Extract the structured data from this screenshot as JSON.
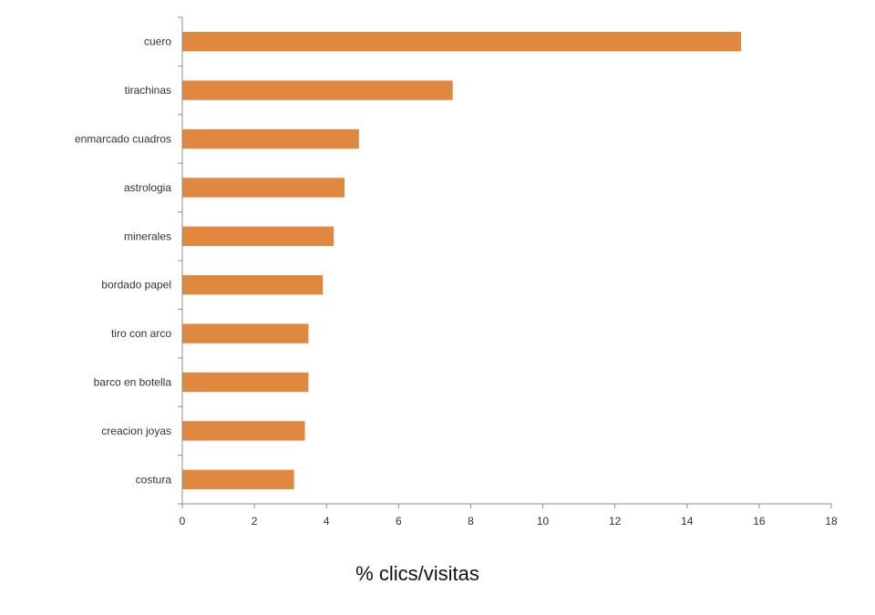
{
  "chart_data": {
    "type": "bar",
    "orientation": "horizontal",
    "categories": [
      "cuero",
      "tirachinas",
      "enmarcado cuadros",
      "astrologia",
      "minerales",
      "bordado papel",
      "tiro con arco",
      "barco en botella",
      "creacion joyas",
      "costura"
    ],
    "values": [
      15.5,
      7.5,
      4.9,
      4.5,
      4.2,
      3.9,
      3.5,
      3.5,
      3.4,
      3.1
    ],
    "xlabel": "% clics/visitas",
    "ylabel": "",
    "xlim": [
      0,
      18
    ],
    "xticks": [
      "0",
      "2",
      "4",
      "6",
      "8",
      "10",
      "12",
      "14",
      "16",
      "18"
    ],
    "grid": false,
    "legend": "none",
    "bar_color": "#E0883F",
    "axis_color": "#8C8C8C"
  }
}
